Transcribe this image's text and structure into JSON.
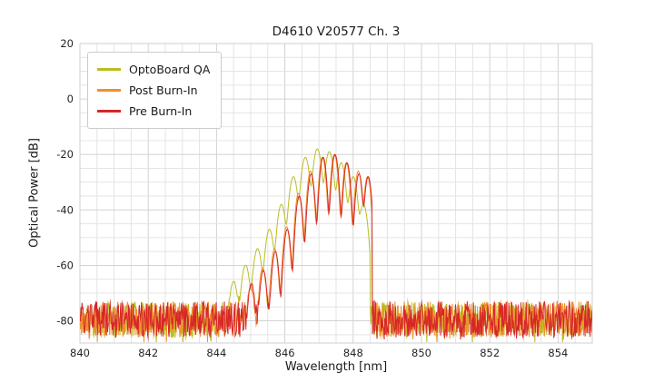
{
  "chart_data": {
    "type": "line",
    "title": "D4610 V20577 Ch. 3",
    "xlabel": "Wavelength [nm]",
    "ylabel": "Optical Power [dB]",
    "xlim": [
      840,
      855
    ],
    "ylim": [
      -88,
      20
    ],
    "x_ticks": [
      840,
      842,
      844,
      846,
      848,
      850,
      852,
      854
    ],
    "y_ticks": [
      20,
      0,
      -20,
      -40,
      -60,
      -80
    ],
    "grid": {
      "minor_x_step": 0.5,
      "minor_y_step": 5,
      "major_color": "#d2d2d2",
      "minor_color": "#e4e4e4",
      "spine_color": "#cfcfcf"
    },
    "legend_position": "upper left",
    "series": [
      {
        "name": "OptoBoard QA",
        "color": "#bcbd22",
        "seed": 11,
        "mode_width": 0.095,
        "cutoff": 848.5,
        "noise_floor": {
          "mean": -79.5,
          "amplitude": 6.5
        },
        "modes": [
          [
            844.5,
            -66
          ],
          [
            844.85,
            -60
          ],
          [
            845.2,
            -54
          ],
          [
            845.55,
            -47
          ],
          [
            845.9,
            -38
          ],
          [
            846.25,
            -28
          ],
          [
            846.6,
            -21
          ],
          [
            846.95,
            -18
          ],
          [
            847.3,
            -19
          ],
          [
            847.65,
            -23
          ],
          [
            848.0,
            -28
          ],
          [
            848.3,
            -38
          ]
        ]
      },
      {
        "name": "Post Burn-In",
        "color": "#f28e2b",
        "seed": 22,
        "mode_width": 0.075,
        "cutoff": 848.55,
        "noise_floor": {
          "mean": -79.5,
          "amplitude": 6.5
        },
        "modes": [
          [
            845.0,
            -68
          ],
          [
            845.35,
            -61
          ],
          [
            845.7,
            -54
          ],
          [
            846.05,
            -46
          ],
          [
            846.4,
            -34
          ],
          [
            846.75,
            -26
          ],
          [
            847.1,
            -21
          ],
          [
            847.45,
            -20
          ],
          [
            847.8,
            -23
          ],
          [
            848.15,
            -26
          ],
          [
            848.42,
            -28
          ]
        ]
      },
      {
        "name": "Pre Burn-In",
        "color": "#d62728",
        "seed": 33,
        "mode_width": 0.075,
        "cutoff": 848.55,
        "noise_floor": {
          "mean": -79.5,
          "amplitude": 6.5
        },
        "modes": [
          [
            845.02,
            -67
          ],
          [
            845.37,
            -62
          ],
          [
            845.72,
            -55
          ],
          [
            846.07,
            -47
          ],
          [
            846.42,
            -35
          ],
          [
            846.77,
            -27
          ],
          [
            847.12,
            -21
          ],
          [
            847.47,
            -20
          ],
          [
            847.82,
            -23
          ],
          [
            848.17,
            -27
          ],
          [
            848.44,
            -28
          ]
        ]
      }
    ]
  }
}
